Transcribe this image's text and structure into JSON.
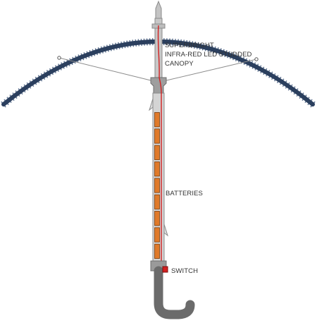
{
  "labels": {
    "canopy_line1": "SUPERBRIGHT",
    "canopy_line2": "INFRA-RED LED STUDDED",
    "canopy_line3": "CANOPY",
    "batteries": "BATTERIES",
    "switch": "SWITCH"
  },
  "colors": {
    "canopy": "#2b3f5e",
    "led": "#5a6f8e",
    "shaft": "#b5b5b5",
    "shaft_stroke": "#8a8a8a",
    "battery_fill": "#e07a2a",
    "battery_stroke": "#7a3a0a",
    "wire": "#d42020",
    "handle": "#6b6b6b",
    "switch": "#d42020",
    "strut": "#8c8c8c",
    "label": "#333333"
  },
  "components": {
    "battery_count": 9
  }
}
